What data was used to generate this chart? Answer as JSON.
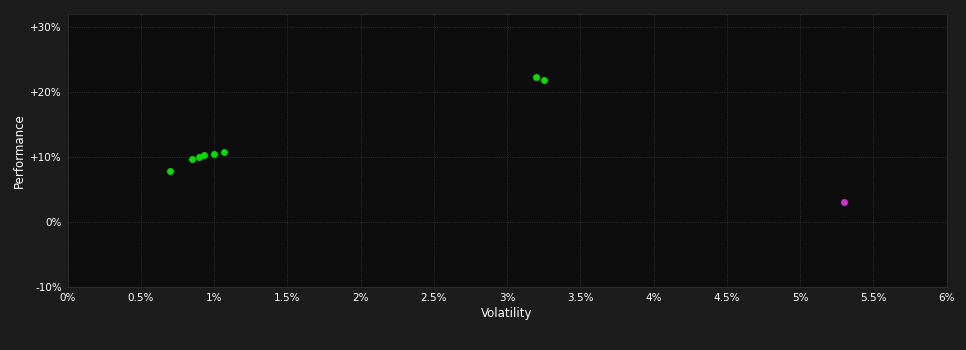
{
  "background_color": "#1c1c1c",
  "plot_bg_color": "#0d0d0d",
  "grid_color": "#3a3a3a",
  "text_color": "#ffffff",
  "xlabel": "Volatility",
  "ylabel": "Performance",
  "xlim": [
    0.0,
    0.06
  ],
  "ylim": [
    -0.1,
    0.32
  ],
  "xticks": [
    0.0,
    0.005,
    0.01,
    0.015,
    0.02,
    0.025,
    0.03,
    0.035,
    0.04,
    0.045,
    0.05,
    0.055,
    0.06
  ],
  "xtick_labels": [
    "0%",
    "0.5%",
    "1%",
    "1.5%",
    "2%",
    "2.5%",
    "3%",
    "3.5%",
    "4%",
    "4.5%",
    "5%",
    "5.5%",
    "6%"
  ],
  "yticks": [
    -0.1,
    0.0,
    0.1,
    0.2,
    0.3
  ],
  "ytick_labels": [
    "-10%",
    "0%",
    "+10%",
    "+20%",
    "+30%"
  ],
  "green_points": [
    [
      0.007,
      0.079
    ],
    [
      0.0085,
      0.097
    ],
    [
      0.009,
      0.1
    ],
    [
      0.0093,
      0.103
    ],
    [
      0.01,
      0.105
    ],
    [
      0.0107,
      0.108
    ],
    [
      0.032,
      0.223
    ],
    [
      0.0325,
      0.218
    ]
  ],
  "magenta_points": [
    [
      0.053,
      0.031
    ]
  ],
  "green_color": "#00dd00",
  "magenta_color": "#cc33cc",
  "marker_size": 5
}
